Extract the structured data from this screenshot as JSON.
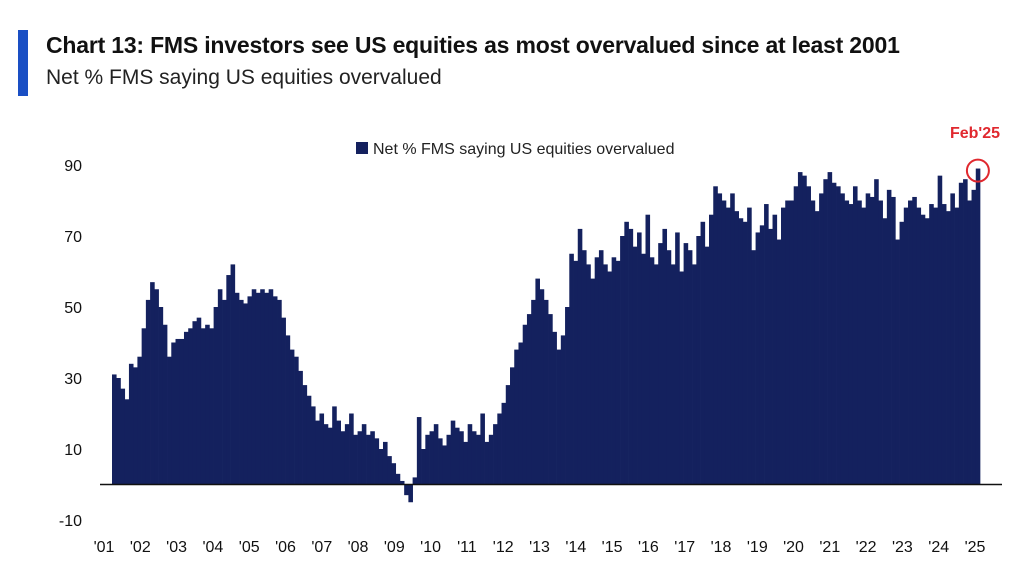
{
  "header": {
    "title": "Chart 13: FMS investors see US equities as most overvalued since at least 2001",
    "subtitle": "Net % FMS saying US equities overvalued"
  },
  "colors": {
    "bar": "#14215e",
    "accent": "#1a4fc4",
    "annotation": "#e0282e",
    "axis": "#111111"
  },
  "chart_data": {
    "type": "bar",
    "legend": "Net % FMS saying US equities overvalued",
    "legend_position": "top-center",
    "grid": false,
    "ylim": [
      -10,
      95
    ],
    "yticks": [
      -10,
      10,
      30,
      50,
      70,
      90
    ],
    "x_start": "2001-02",
    "x_end": "2025-02",
    "xtick_labels": [
      "'01",
      "'02",
      "'03",
      "'04",
      "'05",
      "'06",
      "'07",
      "'08",
      "'09",
      "'10",
      "'11",
      "'12",
      "'13",
      "'14",
      "'15",
      "'16",
      "'17",
      "'18",
      "'19",
      "'20",
      "'21",
      "'22",
      "'23",
      "'24",
      "'25"
    ],
    "annotation": {
      "label": "Feb'25",
      "x": "2025-02",
      "y": 89
    },
    "series": [
      {
        "name": "Net % FMS saying US equities overvalued",
        "frequency": "monthly",
        "values": [
          31,
          30,
          27,
          24,
          34,
          33,
          36,
          44,
          52,
          57,
          55,
          50,
          45,
          36,
          40,
          41,
          41,
          43,
          44,
          46,
          47,
          44,
          45,
          44,
          50,
          55,
          52,
          59,
          62,
          54,
          52,
          51,
          53,
          55,
          54,
          55,
          54,
          55,
          53,
          52,
          47,
          42,
          38,
          36,
          32,
          28,
          25,
          22,
          18,
          20,
          17,
          16,
          22,
          18,
          15,
          17,
          20,
          14,
          15,
          17,
          14,
          15,
          13,
          10,
          12,
          8,
          6,
          3,
          1,
          -3,
          -5,
          2,
          19,
          10,
          14,
          15,
          17,
          13,
          11,
          14,
          18,
          16,
          15,
          12,
          17,
          15,
          14,
          20,
          12,
          14,
          17,
          20,
          23,
          28,
          33,
          38,
          40,
          45,
          48,
          52,
          58,
          55,
          52,
          48,
          43,
          38,
          42,
          50,
          65,
          63,
          72,
          66,
          62,
          58,
          64,
          66,
          62,
          60,
          64,
          63,
          70,
          74,
          72,
          67,
          71,
          65,
          76,
          64,
          62,
          68,
          72,
          66,
          62,
          71,
          60,
          68,
          66,
          62,
          70,
          74,
          67,
          76,
          84,
          82,
          80,
          78,
          82,
          77,
          75,
          74,
          78,
          66,
          71,
          73,
          79,
          72,
          76,
          69,
          78,
          80,
          80,
          84,
          88,
          87,
          84,
          80,
          77,
          82,
          86,
          88,
          85,
          84,
          82,
          80,
          79,
          84,
          80,
          78,
          82,
          81,
          86,
          80,
          75,
          83,
          81,
          69,
          74,
          78,
          80,
          81,
          78,
          76,
          75,
          79,
          78,
          87,
          79,
          77,
          82,
          78,
          85,
          86,
          80,
          83,
          89
        ]
      }
    ]
  }
}
